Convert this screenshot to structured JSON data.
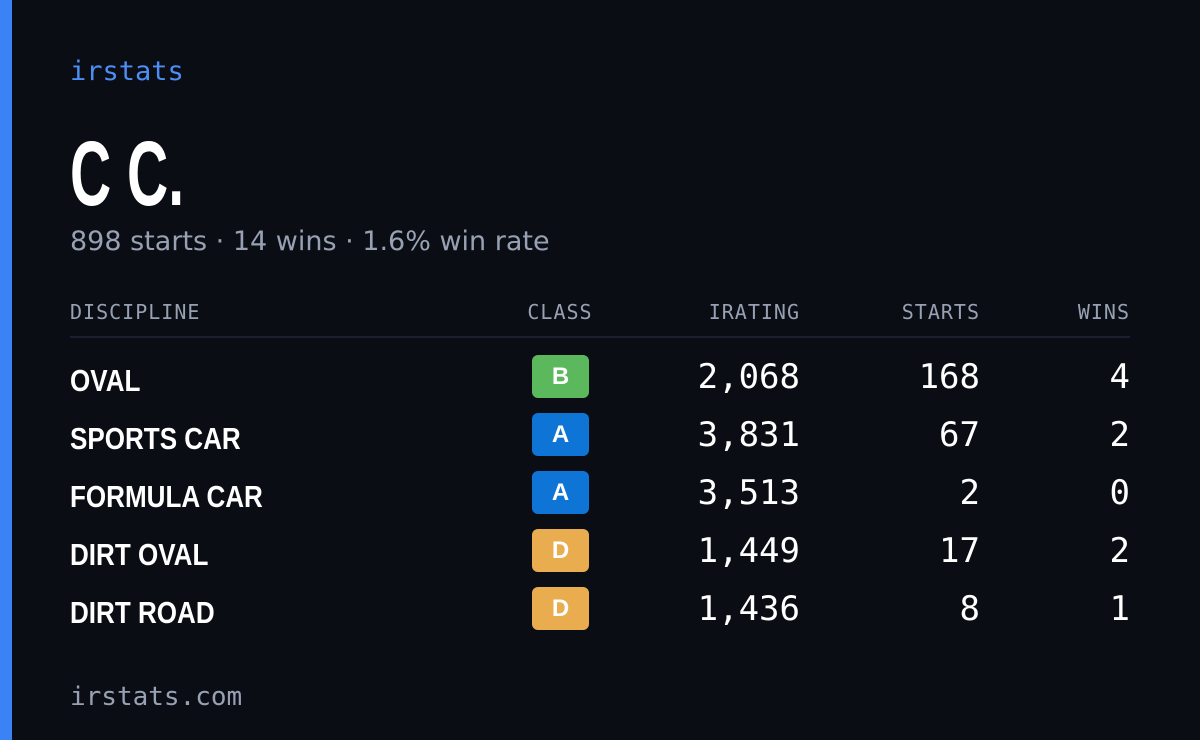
{
  "brand": "irstats",
  "profile": {
    "name": "C C.",
    "summary": "898 starts · 14 wins · 1.6% win rate"
  },
  "table": {
    "headers": [
      "DISCIPLINE",
      "CLASS",
      "IRATING",
      "STARTS",
      "WINS"
    ],
    "rows": [
      {
        "discipline": "OVAL",
        "class": "B",
        "color": "#5cb85c",
        "irating": "2,068",
        "starts": "168",
        "wins": "4"
      },
      {
        "discipline": "SPORTS CAR",
        "class": "A",
        "color": "#0e74d6",
        "irating": "3,831",
        "starts": "67",
        "wins": "2"
      },
      {
        "discipline": "FORMULA CAR",
        "class": "A",
        "color": "#0e74d6",
        "irating": "3,513",
        "starts": "2",
        "wins": "0"
      },
      {
        "discipline": "DIRT OVAL",
        "class": "D",
        "color": "#e9ad50",
        "irating": "1,449",
        "starts": "17",
        "wins": "2"
      },
      {
        "discipline": "DIRT ROAD",
        "class": "D",
        "color": "#e9ad50",
        "irating": "1,436",
        "starts": "8",
        "wins": "1"
      }
    ]
  },
  "footer": "irstats.com"
}
